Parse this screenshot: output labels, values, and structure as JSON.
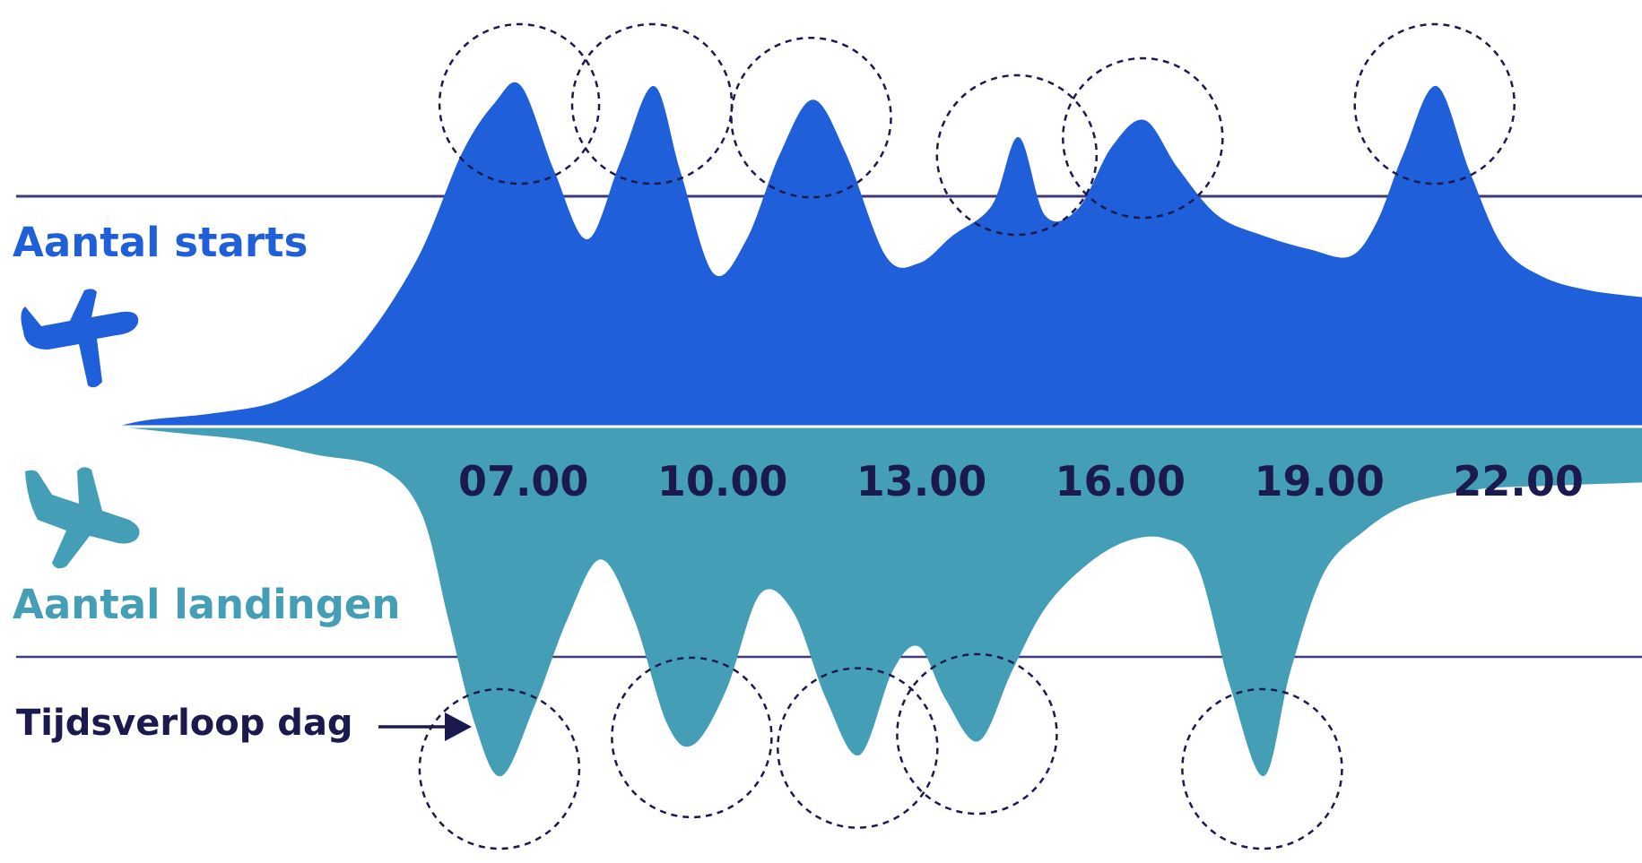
{
  "labels": {
    "starts": "Aantal starts",
    "landings": "Aantal landingen",
    "time": "Tijdsverloop dag"
  },
  "icons": {
    "starts": "airplane-takeoff-icon",
    "landings": "airplane-landing-icon",
    "time_arrow": "arrow-right-icon"
  },
  "colors": {
    "starts": "#1f5fd9",
    "landings": "#449fb6",
    "ticks": "#1b1a4f",
    "rule": "#3c3a78",
    "circle": "#1b1a4f"
  },
  "chart_data": {
    "type": "area",
    "x_tick_labels": [
      "07.00",
      "10.00",
      "13.00",
      "16.00",
      "19.00",
      "22.00"
    ],
    "x_tick_hours": [
      7,
      10,
      13,
      16,
      19,
      22
    ],
    "xlim": [
      1,
      24
    ],
    "series": [
      {
        "name": "Aantal starts",
        "direction": "up",
        "points": [
          [
            1.0,
            0
          ],
          [
            1.5,
            2
          ],
          [
            2.5,
            4
          ],
          [
            3.5,
            8
          ],
          [
            4.5,
            20
          ],
          [
            5.5,
            48
          ],
          [
            6.2,
            80
          ],
          [
            6.7,
            95
          ],
          [
            7.1,
            100
          ],
          [
            7.6,
            75
          ],
          [
            8.1,
            55
          ],
          [
            8.6,
            78
          ],
          [
            9.1,
            100
          ],
          [
            9.5,
            75
          ],
          [
            10.0,
            45
          ],
          [
            10.5,
            55
          ],
          [
            11.0,
            80
          ],
          [
            11.5,
            96
          ],
          [
            12.0,
            80
          ],
          [
            12.6,
            50
          ],
          [
            13.1,
            48
          ],
          [
            13.6,
            56
          ],
          [
            14.2,
            65
          ],
          [
            14.6,
            85
          ],
          [
            15.0,
            62
          ],
          [
            15.5,
            64
          ],
          [
            16.0,
            82
          ],
          [
            16.5,
            90
          ],
          [
            17.0,
            76
          ],
          [
            17.6,
            62
          ],
          [
            18.3,
            56
          ],
          [
            19.0,
            52
          ],
          [
            19.6,
            50
          ],
          [
            20.0,
            60
          ],
          [
            20.4,
            80
          ],
          [
            20.9,
            100
          ],
          [
            21.4,
            75
          ],
          [
            21.9,
            53
          ],
          [
            22.5,
            44
          ],
          [
            23.2,
            40
          ],
          [
            24.0,
            38
          ]
        ]
      },
      {
        "name": "Aantal landingen",
        "direction": "down",
        "points": [
          [
            1.0,
            0
          ],
          [
            2.0,
            2
          ],
          [
            3.0,
            4
          ],
          [
            4.0,
            8
          ],
          [
            5.0,
            12
          ],
          [
            5.6,
            25
          ],
          [
            6.0,
            55
          ],
          [
            6.4,
            85
          ],
          [
            6.8,
            100
          ],
          [
            7.3,
            80
          ],
          [
            7.8,
            55
          ],
          [
            8.3,
            38
          ],
          [
            8.8,
            55
          ],
          [
            9.3,
            85
          ],
          [
            9.7,
            91
          ],
          [
            10.2,
            75
          ],
          [
            10.7,
            48
          ],
          [
            11.2,
            53
          ],
          [
            11.7,
            78
          ],
          [
            12.2,
            94
          ],
          [
            12.7,
            70
          ],
          [
            13.1,
            63
          ],
          [
            13.5,
            78
          ],
          [
            14.0,
            90
          ],
          [
            14.5,
            70
          ],
          [
            15.0,
            52
          ],
          [
            15.6,
            40
          ],
          [
            16.2,
            33
          ],
          [
            16.8,
            32
          ],
          [
            17.3,
            40
          ],
          [
            17.8,
            75
          ],
          [
            18.3,
            100
          ],
          [
            18.7,
            70
          ],
          [
            19.2,
            42
          ],
          [
            19.8,
            30
          ],
          [
            20.5,
            22
          ],
          [
            21.5,
            18
          ],
          [
            22.5,
            17
          ],
          [
            24.0,
            16
          ]
        ]
      }
    ],
    "highlight_peaks_starts": [
      7.1,
      9.1,
      11.5,
      14.6,
      16.5,
      20.9
    ],
    "highlight_peaks_landings": [
      6.8,
      9.7,
      12.2,
      14.0,
      18.3
    ]
  }
}
